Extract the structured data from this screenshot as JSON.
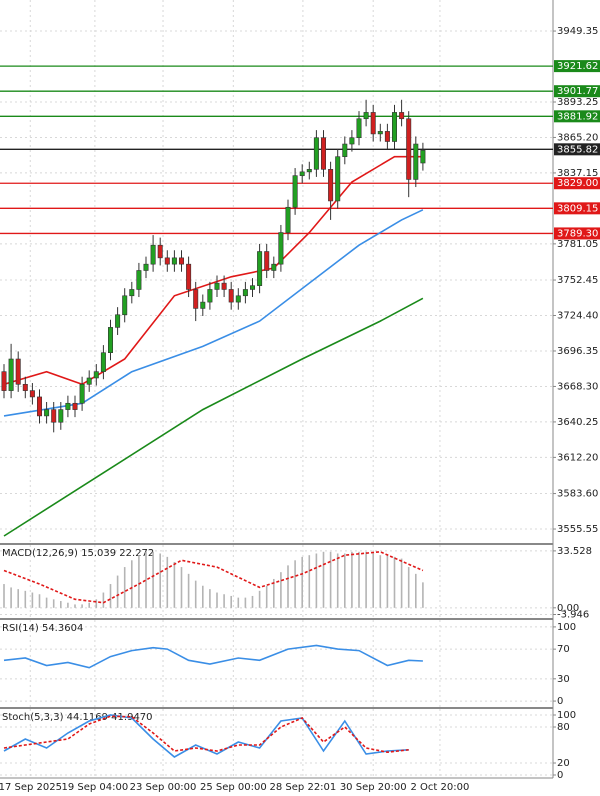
{
  "chart_data": [
    {
      "type": "candlestick",
      "up_color": "#22a022",
      "down_color": "#d02020",
      "open": [
        3680,
        3665,
        3690,
        3670,
        3665,
        3660,
        3645,
        3650,
        3640,
        3650,
        3655,
        3655,
        3670,
        3675,
        3680,
        3695,
        3715,
        3725,
        3740,
        3745,
        3760,
        3765,
        3780,
        3770,
        3765,
        3770,
        3765,
        3745,
        3730,
        3735,
        3745,
        3750,
        3745,
        3735,
        3740,
        3745,
        3748,
        3775,
        3760,
        3765,
        3790,
        3810,
        3835,
        3838,
        3840,
        3865,
        3840,
        3815,
        3850,
        3860,
        3865,
        3880,
        3885,
        3868,
        3870,
        3862,
        3885,
        3880,
        3832,
        3845
      ],
      "high": [
        3686,
        3702,
        3696,
        3676,
        3671,
        3666,
        3656,
        3656,
        3656,
        3661,
        3661,
        3676,
        3681,
        3686,
        3701,
        3721,
        3731,
        3746,
        3751,
        3766,
        3771,
        3788,
        3786,
        3776,
        3776,
        3776,
        3771,
        3751,
        3741,
        3751,
        3756,
        3756,
        3751,
        3746,
        3751,
        3754,
        3781,
        3781,
        3771,
        3796,
        3816,
        3841,
        3844,
        3846,
        3871,
        3871,
        3846,
        3856,
        3866,
        3871,
        3886,
        3895,
        3891,
        3876,
        3876,
        3891,
        3895,
        3886,
        3866,
        3861
      ],
      "low": [
        3659,
        3659,
        3664,
        3659,
        3654,
        3639,
        3639,
        3632,
        3634,
        3644,
        3644,
        3649,
        3664,
        3669,
        3674,
        3689,
        3709,
        3719,
        3734,
        3739,
        3754,
        3759,
        3764,
        3759,
        3759,
        3759,
        3739,
        3720,
        3724,
        3729,
        3739,
        3739,
        3729,
        3729,
        3734,
        3739,
        3742,
        3754,
        3754,
        3759,
        3784,
        3804,
        3829,
        3832,
        3834,
        3834,
        3800,
        3809,
        3844,
        3854,
        3859,
        3874,
        3862,
        3862,
        3856,
        3856,
        3874,
        3818,
        3826,
        3839
      ],
      "close": [
        3665,
        3690,
        3670,
        3665,
        3660,
        3645,
        3650,
        3640,
        3650,
        3655,
        3650,
        3670,
        3675,
        3680,
        3695,
        3715,
        3725,
        3740,
        3745,
        3760,
        3765,
        3780,
        3770,
        3765,
        3770,
        3765,
        3745,
        3730,
        3735,
        3745,
        3750,
        3745,
        3735,
        3740,
        3745,
        3748,
        3775,
        3760,
        3765,
        3790,
        3810,
        3835,
        3838,
        3840,
        3865,
        3840,
        3815,
        3850,
        3860,
        3865,
        3880,
        3885,
        3868,
        3870,
        3862,
        3885,
        3880,
        3832,
        3860,
        3855
      ],
      "series": [
        {
          "color": "#e01818",
          "x": [
            0,
            6,
            11,
            17,
            24,
            32,
            38,
            43,
            49,
            55,
            59
          ],
          "values": [
            3670,
            3680,
            3670,
            3690,
            3740,
            3755,
            3762,
            3790,
            3830,
            3850,
            3850
          ]
        },
        {
          "color": "#3a8ee6",
          "x": [
            0,
            11,
            18,
            28,
            36,
            43,
            50,
            56,
            59
          ],
          "values": [
            3645,
            3655,
            3680,
            3700,
            3720,
            3750,
            3780,
            3800,
            3808
          ]
        },
        {
          "color": "#1a8a1a",
          "x": [
            0,
            14,
            28,
            42,
            53,
            59
          ],
          "values": [
            3550,
            3600,
            3650,
            3690,
            3720,
            3738
          ]
        }
      ],
      "levels": [
        {
          "value": 3921.62,
          "color": "#1a8a1a"
        },
        {
          "value": 3901.77,
          "color": "#1a8a1a"
        },
        {
          "value": 3881.92,
          "color": "#1a8a1a"
        },
        {
          "value": 3855.82,
          "color": "#222222"
        },
        {
          "value": 3829,
          "label": "3829.00",
          "color": "#e01818"
        },
        {
          "value": 3809.15,
          "color": "#e01818"
        },
        {
          "value": 3789.3,
          "label": "3789.30",
          "color": "#e01818"
        }
      ],
      "ylim": [
        3544.5,
        3973.9
      ],
      "yticks": [
        3949.35,
        3893.25,
        {
          "value": 3865.2,
          "label": "3865.20"
        },
        3837.15,
        3781.05,
        3752.45,
        {
          "value": 3724.4,
          "label": "3724.40"
        },
        3696.35,
        {
          "value": 3668.3,
          "label": "3668.30"
        },
        3640.25,
        {
          "value": 3612.2,
          "label": "3612.20"
        },
        {
          "value": 3583.6,
          "label": "3583.60"
        },
        3555.55
      ]
    },
    {
      "type": "macd",
      "title": "MACD(12,26,9) 15.039 22.272",
      "color": "#b4b4b4",
      "values": [
        14,
        12,
        11,
        10,
        9,
        8,
        6,
        5,
        4,
        3,
        2,
        2,
        3,
        5,
        9,
        14,
        19,
        24,
        28,
        31,
        33,
        33,
        32,
        30,
        27,
        24,
        20,
        16,
        13,
        11,
        9,
        8,
        7,
        6,
        6,
        7,
        10,
        13,
        17,
        21,
        25,
        28,
        30,
        31,
        32,
        33,
        33,
        32,
        32,
        33,
        33,
        33,
        32,
        31,
        31,
        30,
        29,
        24,
        20,
        15
      ],
      "series": [
        {
          "color": "#e01818",
          "style": "dashed",
          "x": [
            0,
            5,
            10,
            14,
            19,
            25,
            30,
            36,
            42,
            48,
            53,
            59
          ],
          "values": [
            22,
            14,
            5,
            3,
            14,
            28,
            24,
            12,
            20,
            31,
            33,
            22
          ]
        }
      ],
      "ylim": [
        -6,
        37
      ],
      "yticks": [
        33.528,
        {
          "value": 0,
          "label": "0.00"
        },
        -3.946
      ]
    },
    {
      "type": "line",
      "title": "RSI(14) 54.3604",
      "series": [
        {
          "color": "#3a8ee6",
          "x": [
            0,
            3,
            6,
            9,
            12,
            15,
            18,
            21,
            23,
            26,
            29,
            33,
            36,
            40,
            44,
            47,
            50,
            54,
            57,
            59
          ],
          "values": [
            55,
            58,
            48,
            52,
            45,
            60,
            68,
            72,
            70,
            55,
            50,
            58,
            55,
            70,
            75,
            70,
            68,
            48,
            55,
            54
          ]
        }
      ],
      "ylim": [
        -8,
        109.3
      ],
      "yticks": [
        100,
        70,
        30,
        0
      ]
    },
    {
      "type": "line",
      "title": "Stoch(5,3,3) 44.1169 41.9470",
      "series": [
        {
          "color": "#3a8ee6",
          "x": [
            0,
            3,
            6,
            9,
            12,
            15,
            18,
            21,
            24,
            27,
            30,
            33,
            36,
            39,
            42,
            45,
            48,
            51,
            54,
            57
          ],
          "values": [
            40,
            60,
            45,
            70,
            90,
            100,
            95,
            60,
            30,
            50,
            35,
            55,
            45,
            90,
            95,
            40,
            90,
            35,
            40,
            42
          ]
        },
        {
          "color": "#e01818",
          "style": "dashed",
          "x": [
            0,
            3,
            6,
            9,
            12,
            15,
            18,
            21,
            24,
            27,
            30,
            33,
            36,
            39,
            42,
            45,
            48,
            51,
            54,
            57
          ],
          "values": [
            45,
            50,
            55,
            60,
            85,
            98,
            97,
            70,
            40,
            45,
            40,
            50,
            50,
            80,
            95,
            55,
            80,
            45,
            38,
            42
          ]
        }
      ],
      "ylim": [
        -5,
        110
      ],
      "yticks": [
        100,
        80,
        20,
        0
      ],
      "xticks": [
        {
          "value": 3.7,
          "label": "17 Sep 2025"
        },
        {
          "value": 12.8,
          "label": "19 Sep 04:00"
        },
        {
          "value": 22.4,
          "label": "23 Sep 00:00"
        },
        {
          "value": 32.3,
          "label": "25 Sep 00:00"
        },
        {
          "value": 42.1,
          "label": "28 Sep 22:01"
        },
        {
          "value": 52,
          "label": "30 Sep 20:00"
        },
        {
          "value": 61.4,
          "label": "2 Oct 20:00"
        }
      ]
    }
  ]
}
